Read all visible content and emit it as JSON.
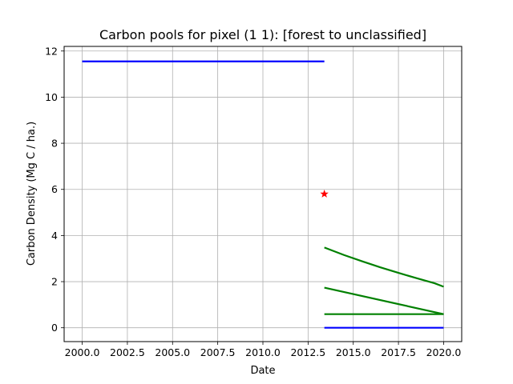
{
  "chart_data": {
    "type": "line",
    "title": "Carbon pools for pixel (1 1): [forest to unclassified]",
    "xlabel": "Date",
    "ylabel": "Carbon Density (Mg C / ha.)",
    "xlim": [
      1999.0,
      2021.0
    ],
    "ylim": [
      -0.6,
      12.2
    ],
    "xticks": [
      2000.0,
      2002.5,
      2005.0,
      2007.5,
      2010.0,
      2012.5,
      2015.0,
      2017.5,
      2020.0
    ],
    "xtick_labels": [
      "2000.0",
      "2002.5",
      "2005.0",
      "2007.5",
      "2010.0",
      "2012.5",
      "2015.0",
      "2017.5",
      "2020.0"
    ],
    "yticks": [
      0,
      2,
      4,
      6,
      8,
      10,
      12
    ],
    "ytick_labels": [
      "0",
      "2",
      "4",
      "6",
      "8",
      "10",
      "12"
    ],
    "grid": true,
    "series": [
      {
        "color": "#0000ff",
        "x": [
          2000.0,
          2013.4
        ],
        "y": [
          11.55,
          11.55
        ]
      },
      {
        "color": "#0000ff",
        "x": [
          2013.4,
          2020.0
        ],
        "y": [
          0.0,
          0.0
        ]
      },
      {
        "color": "#008000",
        "x": [
          2013.4,
          2014.5,
          2015.5,
          2016.5,
          2017.5,
          2018.5,
          2019.5,
          2020.0
        ],
        "y": [
          3.48,
          3.15,
          2.88,
          2.62,
          2.38,
          2.15,
          1.93,
          1.78
        ]
      },
      {
        "color": "#008000",
        "x": [
          2013.4,
          2020.0
        ],
        "y": [
          1.74,
          0.59
        ]
      },
      {
        "color": "#008000",
        "x": [
          2013.4,
          2020.0
        ],
        "y": [
          0.59,
          0.59
        ]
      }
    ],
    "markers": [
      {
        "color": "#ff0000",
        "shape": "star",
        "x": 2013.4,
        "y": 5.8
      }
    ]
  }
}
